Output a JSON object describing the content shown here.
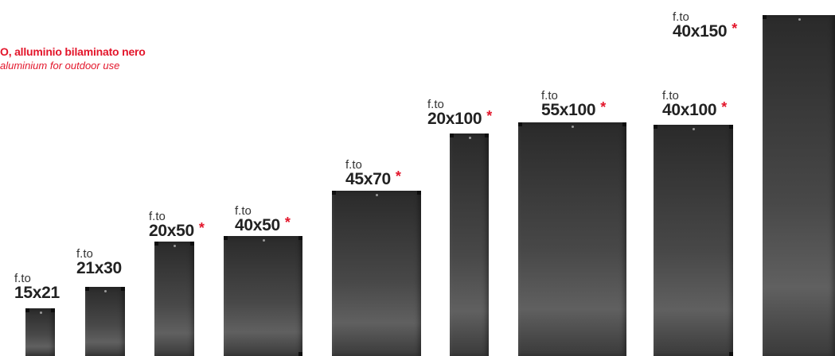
{
  "header": {
    "line_it": "O, alluminio bilaminato nero",
    "line_en": "aluminium for outdoor use",
    "accent_color": "#e3162b"
  },
  "formats": [
    {
      "prefix": "f.to",
      "size": "15x21",
      "star": ""
    },
    {
      "prefix": "f.to",
      "size": "21x30",
      "star": ""
    },
    {
      "prefix": "f.to",
      "size": "20x50",
      "star": "*"
    },
    {
      "prefix": "f.to",
      "size": "40x50",
      "star": "*"
    },
    {
      "prefix": "f.to",
      "size": "45x70",
      "star": "*"
    },
    {
      "prefix": "f.to",
      "size": "20x100",
      "star": "*"
    },
    {
      "prefix": "f.to",
      "size": "55x100",
      "star": "*"
    },
    {
      "prefix": "f.to",
      "size": "40x100",
      "star": "*"
    },
    {
      "prefix": "f.to",
      "size": "40x150",
      "star": "*"
    }
  ]
}
